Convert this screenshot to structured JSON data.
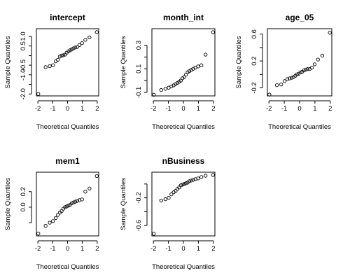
{
  "chart_data": [
    {
      "type": "scatter",
      "title": "intercept",
      "xlabel": "Theoretical Quantiles",
      "ylabel": "Sample Quantiles",
      "xlim": [
        -2.1,
        2.1
      ],
      "ylim": [
        -2.1,
        1.4
      ],
      "xticks": [
        -2,
        -1,
        0,
        1,
        2
      ],
      "yticks": [
        -2,
        -1.5,
        -1,
        -0.5,
        0,
        0.5,
        1
      ],
      "ytick_labels": [
        "-2.0",
        "",
        "-1.0",
        "-0.5",
        "",
        "0.5",
        "1.0"
      ],
      "grid": false,
      "x": [
        -1.97,
        -1.48,
        -1.2,
        -0.98,
        -0.8,
        -0.65,
        -0.52,
        -0.4,
        -0.28,
        -0.17,
        -0.06,
        0.06,
        0.17,
        0.28,
        0.4,
        0.52,
        0.65,
        0.8,
        0.98,
        1.2,
        1.48,
        1.97
      ],
      "y": [
        -2.0,
        -0.6,
        -0.55,
        -0.5,
        -0.3,
        -0.22,
        -0.05,
        0.0,
        0.02,
        0.05,
        0.15,
        0.22,
        0.28,
        0.32,
        0.38,
        0.42,
        0.45,
        0.55,
        0.65,
        0.82,
        0.95,
        1.22
      ]
    },
    {
      "type": "scatter",
      "title": "month_int",
      "xlabel": "Theoretical Quantiles",
      "ylabel": "Sample Quantiles",
      "xlim": [
        -2.1,
        2.1
      ],
      "ylim": [
        -0.13,
        0.44
      ],
      "xticks": [
        -2,
        -1,
        0,
        1,
        2
      ],
      "yticks": [
        -0.1,
        0.0,
        0.1,
        0.2,
        0.3
      ],
      "ytick_labels": [
        "-0.1",
        "",
        "0.1",
        "",
        "0.3"
      ],
      "grid": false,
      "x": [
        -1.97,
        -1.48,
        -1.2,
        -0.98,
        -0.8,
        -0.65,
        -0.52,
        -0.4,
        -0.28,
        -0.17,
        -0.06,
        0.06,
        0.17,
        0.28,
        0.4,
        0.52,
        0.65,
        0.8,
        0.98,
        1.2,
        1.48,
        1.97
      ],
      "y": [
        -0.12,
        -0.08,
        -0.07,
        -0.06,
        -0.05,
        -0.04,
        -0.03,
        -0.02,
        -0.01,
        0.0,
        0.02,
        0.03,
        0.05,
        0.07,
        0.08,
        0.09,
        0.1,
        0.11,
        0.12,
        0.13,
        0.22,
        0.41
      ]
    },
    {
      "type": "scatter",
      "title": "age_05",
      "xlabel": "Theoretical Quantiles",
      "ylabel": "Sample Quantiles",
      "xlim": [
        -2.1,
        2.1
      ],
      "ylim": [
        -0.32,
        0.68
      ],
      "xticks": [
        -2,
        -1,
        0,
        1,
        2
      ],
      "yticks": [
        -0.2,
        0.0,
        0.2,
        0.4,
        0.6
      ],
      "ytick_labels": [
        "-0.2",
        "",
        "0.2",
        "",
        "0.6"
      ],
      "grid": false,
      "x": [
        -1.97,
        -1.48,
        -1.2,
        -0.98,
        -0.8,
        -0.65,
        -0.52,
        -0.4,
        -0.28,
        -0.17,
        -0.06,
        0.06,
        0.17,
        0.28,
        0.4,
        0.52,
        0.65,
        0.8,
        0.98,
        1.2,
        1.48,
        1.97
      ],
      "y": [
        -0.3,
        -0.16,
        -0.15,
        -0.1,
        -0.07,
        -0.06,
        -0.05,
        -0.04,
        -0.02,
        0.0,
        0.01,
        0.03,
        0.04,
        0.06,
        0.07,
        0.08,
        0.08,
        0.1,
        0.15,
        0.22,
        0.28,
        0.62
      ]
    },
    {
      "type": "scatter",
      "title": "mem1",
      "xlabel": "Theoretical Quantiles",
      "ylabel": "Sample Quantiles",
      "xlim": [
        -2.1,
        2.1
      ],
      "ylim": [
        -0.37,
        0.45
      ],
      "xticks": [
        -2,
        -1,
        0,
        1,
        2
      ],
      "yticks": [
        -0.2,
        0.0,
        0.2
      ],
      "ytick_labels": [
        "",
        "0.0",
        "0.2"
      ],
      "grid": false,
      "x": [
        -1.97,
        -1.48,
        -1.2,
        -0.98,
        -0.8,
        -0.65,
        -0.52,
        -0.4,
        -0.28,
        -0.17,
        -0.06,
        0.06,
        0.17,
        0.28,
        0.4,
        0.52,
        0.65,
        0.8,
        0.98,
        1.2,
        1.48,
        1.97
      ],
      "y": [
        -0.34,
        -0.24,
        -0.2,
        -0.18,
        -0.14,
        -0.1,
        -0.07,
        -0.05,
        -0.02,
        0.0,
        0.01,
        0.02,
        0.03,
        0.05,
        0.06,
        0.07,
        0.08,
        0.09,
        0.1,
        0.2,
        0.24,
        0.4
      ]
    },
    {
      "type": "scatter",
      "title": "nBusiness",
      "xlabel": "Theoretical Quantiles",
      "ylabel": "Sample Quantiles",
      "xlim": [
        -2.1,
        2.1
      ],
      "ylim": [
        -0.75,
        0.17
      ],
      "xticks": [
        -2,
        -1,
        0,
        1,
        2
      ],
      "yticks": [
        -0.6,
        -0.4,
        -0.2,
        0.0
      ],
      "ytick_labels": [
        "-0.6",
        "",
        "-0.2",
        ""
      ],
      "grid": false,
      "x": [
        -1.97,
        -1.48,
        -1.2,
        -0.98,
        -0.8,
        -0.65,
        -0.52,
        -0.4,
        -0.28,
        -0.17,
        -0.06,
        0.06,
        0.17,
        0.28,
        0.4,
        0.52,
        0.65,
        0.8,
        0.98,
        1.2,
        1.48,
        1.97
      ],
      "y": [
        -0.72,
        -0.24,
        -0.22,
        -0.2,
        -0.15,
        -0.12,
        -0.1,
        -0.07,
        -0.05,
        -0.02,
        -0.01,
        0.0,
        0.01,
        0.02,
        0.04,
        0.05,
        0.06,
        0.07,
        0.08,
        0.1,
        0.12,
        0.13
      ]
    }
  ]
}
